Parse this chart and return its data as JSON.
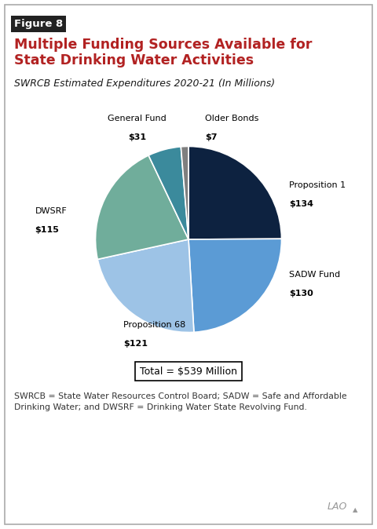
{
  "figure_label": "Figure 8",
  "title": "Multiple Funding Sources Available for\nState Drinking Water Activities",
  "subtitle": "SWRCB Estimated Expenditures 2020-21 (In Millions)",
  "slices": [
    {
      "label": "Proposition 1",
      "value": 134,
      "color": "#0d2240"
    },
    {
      "label": "SADW Fund",
      "value": 130,
      "color": "#5b9bd5"
    },
    {
      "label": "Proposition 68",
      "value": 121,
      "color": "#9dc3e6"
    },
    {
      "label": "DWSRF",
      "value": 115,
      "color": "#70ad9b"
    },
    {
      "label": "General Fund",
      "value": 31,
      "color": "#3b8a9c"
    },
    {
      "label": "Older Bonds",
      "value": 7,
      "color": "#7f7f7f"
    }
  ],
  "total_label": "Total = $539 Million",
  "footnote": "SWRCB = State Water Resources Control Board; SADW = Safe and Affordable\nDrinking Water; and DWSRF = Drinking Water State Revolving Fund.",
  "background_color": "#ffffff",
  "title_color": "#b22222",
  "figure_label_bg": "#222222",
  "figure_label_color": "#ffffff",
  "subtitle_color": "#1a1a1a",
  "border_color": "#aaaaaa"
}
